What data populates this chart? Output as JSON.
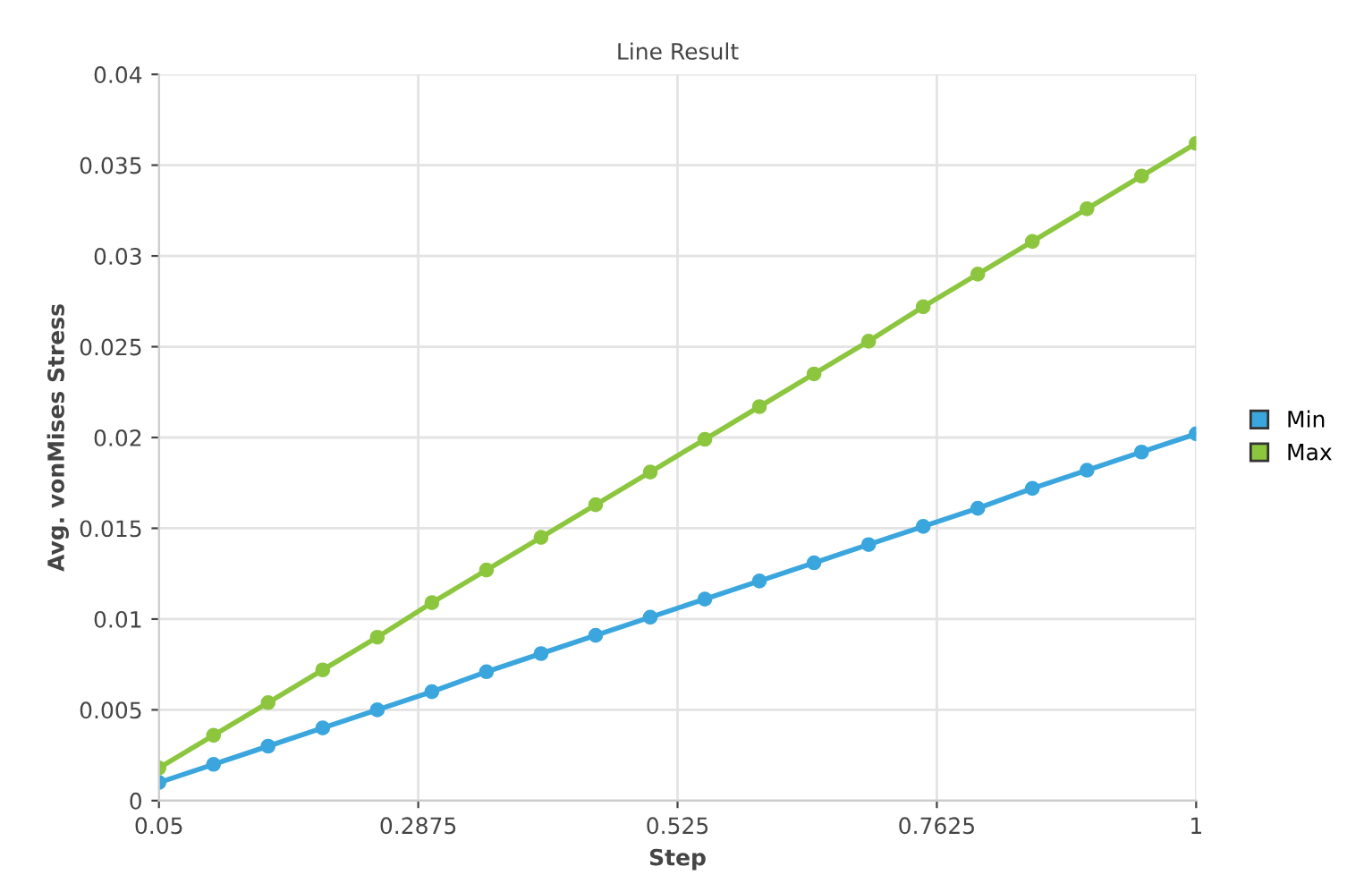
{
  "chart_data": {
    "type": "line",
    "title": "Line Result",
    "xlabel": "Step",
    "ylabel": "Avg. vonMises Stress",
    "x": [
      0.05,
      0.1,
      0.15,
      0.2,
      0.25,
      0.3,
      0.35,
      0.4,
      0.45,
      0.5,
      0.55,
      0.6,
      0.65,
      0.7,
      0.75,
      0.8,
      0.85,
      0.9,
      0.95,
      1
    ],
    "series": [
      {
        "name": "Min",
        "color": "#3aa6dd",
        "values": [
          0.001,
          0.002,
          0.003,
          0.004,
          0.005,
          0.006,
          0.0071,
          0.0081,
          0.0091,
          0.0101,
          0.0111,
          0.0121,
          0.0131,
          0.0141,
          0.0151,
          0.0161,
          0.0172,
          0.0182,
          0.0192,
          0.0202
        ]
      },
      {
        "name": "Max",
        "color": "#8cc63f",
        "values": [
          0.0018,
          0.0036,
          0.0054,
          0.0072,
          0.009,
          0.0109,
          0.0127,
          0.0145,
          0.0163,
          0.0181,
          0.0199,
          0.0217,
          0.0235,
          0.0253,
          0.0272,
          0.029,
          0.0308,
          0.0326,
          0.0344,
          0.0362
        ]
      }
    ],
    "xlim": [
      0.05,
      1
    ],
    "xticks": [
      0.05,
      0.2875,
      0.525,
      0.7625,
      1
    ],
    "ylim": [
      0,
      0.04
    ],
    "yticks": [
      0,
      0.005,
      0.01,
      0.015,
      0.02,
      0.025,
      0.03,
      0.035,
      0.04
    ],
    "grid": true,
    "legend": "right",
    "marker": "circle",
    "line_style": "solid"
  }
}
